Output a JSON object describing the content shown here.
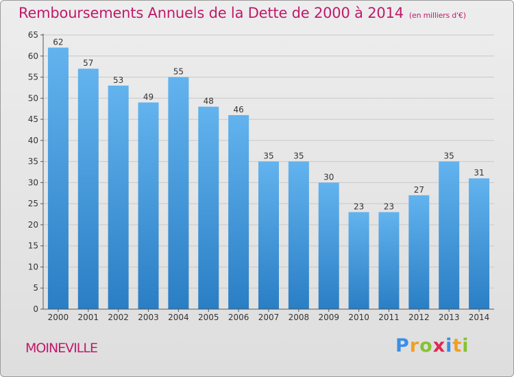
{
  "title": "Remboursements Annuels de la Dette de 2000 à 2014",
  "unit": "(en milliers d'€)",
  "commune": "MOINEVILLE",
  "logo": {
    "text": "Proxiti",
    "letters": [
      {
        "ch": "P",
        "color": "#3a8ee6"
      },
      {
        "ch": "r",
        "color": "#f0a020"
      },
      {
        "ch": "o",
        "color": "#86c232"
      },
      {
        "ch": "x",
        "color": "#e02850"
      },
      {
        "ch": "i",
        "color": "#3a8ee6"
      },
      {
        "ch": "t",
        "color": "#f0a020"
      },
      {
        "ch": "i",
        "color": "#86c232"
      }
    ]
  },
  "colors": {
    "title": "#c0196a",
    "bar_top": "#62b3ee",
    "bar_bottom": "#2a7ec4",
    "grid": "#c8c8c8",
    "axis": "#555555"
  },
  "chart_data": {
    "type": "bar",
    "categories": [
      "2000",
      "2001",
      "2002",
      "2003",
      "2004",
      "2005",
      "2006",
      "2007",
      "2008",
      "2009",
      "2010",
      "2011",
      "2012",
      "2013",
      "2014"
    ],
    "values": [
      62,
      57,
      53,
      49,
      55,
      48,
      46,
      35,
      35,
      30,
      23,
      23,
      27,
      35,
      31
    ],
    "title": "Remboursements Annuels de la Dette de 2000 à 2014",
    "xlabel": "",
    "ylabel": "",
    "ylim": [
      0,
      65
    ],
    "yticks": [
      0,
      5,
      10,
      15,
      20,
      25,
      30,
      35,
      40,
      45,
      50,
      55,
      60,
      65
    ],
    "grid": true,
    "data_labels": true
  }
}
